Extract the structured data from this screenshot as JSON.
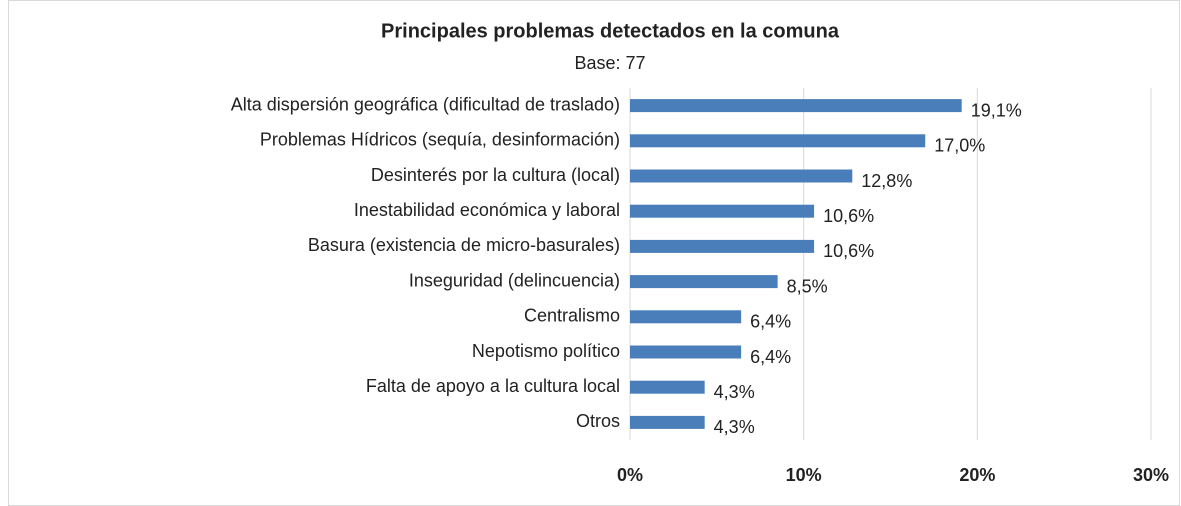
{
  "chart_data": {
    "type": "barh",
    "title": "Principales problemas detectados en la comuna",
    "subtitle": "Base: 77",
    "categories": [
      "Alta dispersión geográfica (dificultad de traslado)",
      "Problemas Hídricos (sequía, desinformación)",
      "Desinterés por la cultura (local)",
      "Inestabilidad económica y laboral",
      "Basura (existencia de micro-basurales)",
      "Inseguridad (delincuencia)",
      "Centralismo",
      "Nepotismo político",
      "Falta de apoyo a la cultura local",
      "Otros"
    ],
    "values": [
      19.1,
      17.0,
      12.8,
      10.6,
      10.6,
      8.5,
      6.4,
      6.4,
      4.3,
      4.3
    ],
    "value_labels": [
      "19,1%",
      "17,0%",
      "12,8%",
      "10,6%",
      "10,6%",
      "8,5%",
      "6,4%",
      "6,4%",
      "4,3%",
      "4,3%"
    ],
    "color": "#4a7ebb",
    "xlim": [
      0,
      30
    ],
    "xticks": [
      {
        "value": 0,
        "label": "0%"
      },
      {
        "value": 10,
        "label": "10%"
      },
      {
        "value": 20,
        "label": "20%"
      },
      {
        "value": 30,
        "label": "30%"
      }
    ],
    "grid": true
  }
}
